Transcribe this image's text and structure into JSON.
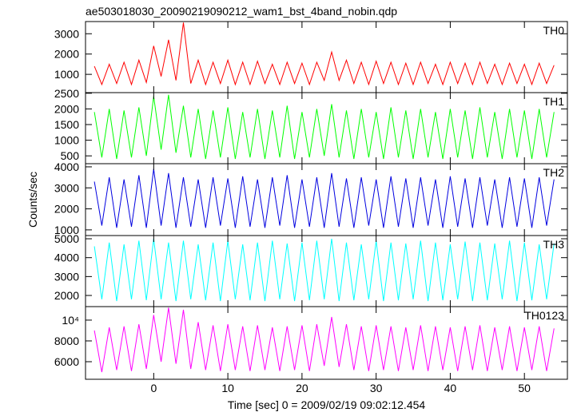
{
  "chart_data": [
    {
      "type": "line",
      "title": "ae503018030_20090219090212_wam1_bst_4band_nobin.qdp",
      "x": [
        -8,
        -7,
        -6,
        -5,
        -4,
        -3,
        -2,
        -1,
        0,
        1,
        2,
        3,
        4,
        5,
        6,
        7,
        8,
        9,
        10,
        11,
        12,
        13,
        14,
        15,
        16,
        17,
        18,
        19,
        20,
        21,
        22,
        23,
        24,
        25,
        26,
        27,
        28,
        29,
        30,
        31,
        32,
        33,
        34,
        35,
        36,
        37,
        38,
        39,
        40,
        41,
        42,
        43,
        44,
        45,
        46,
        47,
        48,
        49,
        50,
        51,
        52,
        53,
        54
      ],
      "xlim": [
        -9.2,
        55.8
      ],
      "xticks": [
        0,
        10,
        20,
        30,
        40,
        50
      ],
      "ylim": [
        100,
        3600
      ],
      "yticks": [
        1000,
        2000,
        3000
      ],
      "series": [
        {
          "name": "TH0",
          "color": "#ff0000",
          "values": [
            1400,
            500,
            1500,
            550,
            1600,
            500,
            1700,
            600,
            2400,
            900,
            2700,
            700,
            3550,
            550,
            1700,
            500,
            1600,
            550,
            1700,
            500,
            1600,
            500,
            1650,
            550,
            1500,
            500,
            1600,
            550,
            1550,
            500,
            1600,
            700,
            2100,
            700,
            1700,
            550,
            1600,
            500,
            1650,
            550,
            1600,
            500,
            1550,
            500,
            1600,
            550,
            1500,
            500,
            1600,
            550,
            1550,
            500,
            1600,
            550,
            1500,
            500,
            1550,
            550,
            1500,
            500,
            1550,
            550,
            1450
          ]
        }
      ]
    },
    {
      "type": "line",
      "x": [
        -8,
        -7,
        -6,
        -5,
        -4,
        -3,
        -2,
        -1,
        0,
        1,
        2,
        3,
        4,
        5,
        6,
        7,
        8,
        9,
        10,
        11,
        12,
        13,
        14,
        15,
        16,
        17,
        18,
        19,
        20,
        21,
        22,
        23,
        24,
        25,
        26,
        27,
        28,
        29,
        30,
        31,
        32,
        33,
        34,
        35,
        36,
        37,
        38,
        39,
        40,
        41,
        42,
        43,
        44,
        45,
        46,
        47,
        48,
        49,
        50,
        51,
        52,
        53,
        54
      ],
      "xlim": [
        -9.2,
        55.8
      ],
      "xticks": [
        0,
        10,
        20,
        30,
        40,
        50
      ],
      "ylim": [
        250,
        2520
      ],
      "yticks": [
        500,
        1000,
        1500,
        2000,
        2500
      ],
      "series": [
        {
          "name": "TH1",
          "color": "#00ff00",
          "values": [
            1900,
            450,
            2000,
            400,
            1950,
            450,
            2050,
            500,
            2400,
            700,
            2450,
            600,
            2100,
            450,
            2000,
            400,
            1950,
            450,
            2050,
            400,
            1900,
            450,
            2000,
            400,
            1950,
            450,
            2100,
            400,
            1900,
            450,
            2000,
            500,
            2150,
            450,
            1950,
            400,
            2000,
            450,
            1900,
            400,
            2050,
            450,
            1950,
            400,
            2000,
            450,
            1900,
            400,
            2000,
            450,
            1950,
            400,
            2050,
            450,
            1900,
            400,
            2000,
            450,
            1950,
            400,
            2000,
            450,
            1900
          ]
        }
      ]
    },
    {
      "type": "line",
      "ylabel": "Counts/sec",
      "x": [
        -8,
        -7,
        -6,
        -5,
        -4,
        -3,
        -2,
        -1,
        0,
        1,
        2,
        3,
        4,
        5,
        6,
        7,
        8,
        9,
        10,
        11,
        12,
        13,
        14,
        15,
        16,
        17,
        18,
        19,
        20,
        21,
        22,
        23,
        24,
        25,
        26,
        27,
        28,
        29,
        30,
        31,
        32,
        33,
        34,
        35,
        36,
        37,
        38,
        39,
        40,
        41,
        42,
        43,
        44,
        45,
        46,
        47,
        48,
        49,
        50,
        51,
        52,
        53,
        54
      ],
      "xlim": [
        -9.2,
        55.8
      ],
      "xticks": [
        0,
        10,
        20,
        30,
        40,
        50
      ],
      "ylim": [
        730,
        4150
      ],
      "yticks": [
        1000,
        2000,
        3000,
        4000
      ],
      "series": [
        {
          "name": "TH2",
          "color": "#0000e0",
          "values": [
            3300,
            1200,
            3500,
            1100,
            3400,
            1150,
            3600,
            1100,
            3900,
            1200,
            3700,
            1100,
            3500,
            1150,
            3400,
            1100,
            3500,
            1200,
            3450,
            1100,
            3550,
            1150,
            3400,
            1100,
            3500,
            1200,
            3600,
            1100,
            3400,
            1150,
            3500,
            1100,
            3700,
            1150,
            3450,
            1100,
            3500,
            1200,
            3400,
            1100,
            3550,
            1150,
            3450,
            1100,
            3500,
            1200,
            3400,
            1100,
            3550,
            1150,
            3450,
            1100,
            3500,
            1200,
            3400,
            1100,
            3500,
            1150,
            3450,
            1100,
            3500,
            1200,
            3400
          ]
        }
      ]
    },
    {
      "type": "line",
      "x": [
        -8,
        -7,
        -6,
        -5,
        -4,
        -3,
        -2,
        -1,
        0,
        1,
        2,
        3,
        4,
        5,
        6,
        7,
        8,
        9,
        10,
        11,
        12,
        13,
        14,
        15,
        16,
        17,
        18,
        19,
        20,
        21,
        22,
        23,
        24,
        25,
        26,
        27,
        28,
        29,
        30,
        31,
        32,
        33,
        34,
        35,
        36,
        37,
        38,
        39,
        40,
        41,
        42,
        43,
        44,
        45,
        46,
        47,
        48,
        49,
        50,
        51,
        52,
        53,
        54
      ],
      "xlim": [
        -9.2,
        55.8
      ],
      "xticks": [
        0,
        10,
        20,
        30,
        40,
        50
      ],
      "ylim": [
        1410,
        5170
      ],
      "yticks": [
        2000,
        3000,
        4000,
        5000
      ],
      "series": [
        {
          "name": "TH3",
          "color": "#00ffff",
          "values": [
            4600,
            1800,
            4800,
            1700,
            4700,
            1800,
            4900,
            1750,
            5000,
            1800,
            4800,
            1700,
            4900,
            1800,
            4700,
            1750,
            4800,
            1700,
            4900,
            1800,
            4700,
            1750,
            4800,
            1700,
            4900,
            1800,
            4750,
            1700,
            4800,
            1750,
            4900,
            1800,
            5000,
            1700,
            4800,
            1750,
            4700,
            1800,
            4900,
            1700,
            4800,
            1750,
            4750,
            1800,
            4900,
            1700,
            4800,
            1750,
            4700,
            1800,
            4850,
            1700,
            4800,
            1750,
            4750,
            1800,
            4900,
            1700,
            4800,
            1750,
            4700,
            1800,
            4750
          ]
        }
      ]
    },
    {
      "type": "line",
      "xlabel": "Time [sec] 0 = 2009/02/19 09:02:12.454",
      "x": [
        -8,
        -7,
        -6,
        -5,
        -4,
        -3,
        -2,
        -1,
        0,
        1,
        2,
        3,
        4,
        5,
        6,
        7,
        8,
        9,
        10,
        11,
        12,
        13,
        14,
        15,
        16,
        17,
        18,
        19,
        20,
        21,
        22,
        23,
        24,
        25,
        26,
        27,
        28,
        29,
        30,
        31,
        32,
        33,
        34,
        35,
        36,
        37,
        38,
        39,
        40,
        41,
        42,
        43,
        44,
        45,
        46,
        47,
        48,
        49,
        50,
        51,
        52,
        53,
        54
      ],
      "xlim": [
        -9.2,
        55.8
      ],
      "xticks": [
        0,
        10,
        20,
        30,
        40,
        50
      ],
      "ylim": [
        4310,
        11300
      ],
      "yticks": [
        6000,
        8000,
        {
          "value": 10000,
          "label": "10⁴"
        }
      ],
      "series": [
        {
          "name": "TH0123",
          "color": "#ff00ff",
          "values": [
            9000,
            5000,
            9300,
            5200,
            9400,
            5100,
            9600,
            5300,
            10500,
            6000,
            11200,
            5800,
            11000,
            5300,
            9800,
            5200,
            9500,
            5100,
            9600,
            5200,
            9400,
            5100,
            9500,
            5200,
            9300,
            5100,
            9400,
            5200,
            9500,
            5100,
            9600,
            5600,
            10300,
            5500,
            9600,
            5200,
            9400,
            5100,
            9500,
            5200,
            9400,
            5100,
            9300,
            5200,
            9500,
            5100,
            9400,
            5200,
            9300,
            5100,
            9400,
            5200,
            9500,
            5100,
            9300,
            5200,
            9400,
            5100,
            9300,
            5200,
            9400,
            5100,
            9200
          ]
        }
      ]
    }
  ]
}
